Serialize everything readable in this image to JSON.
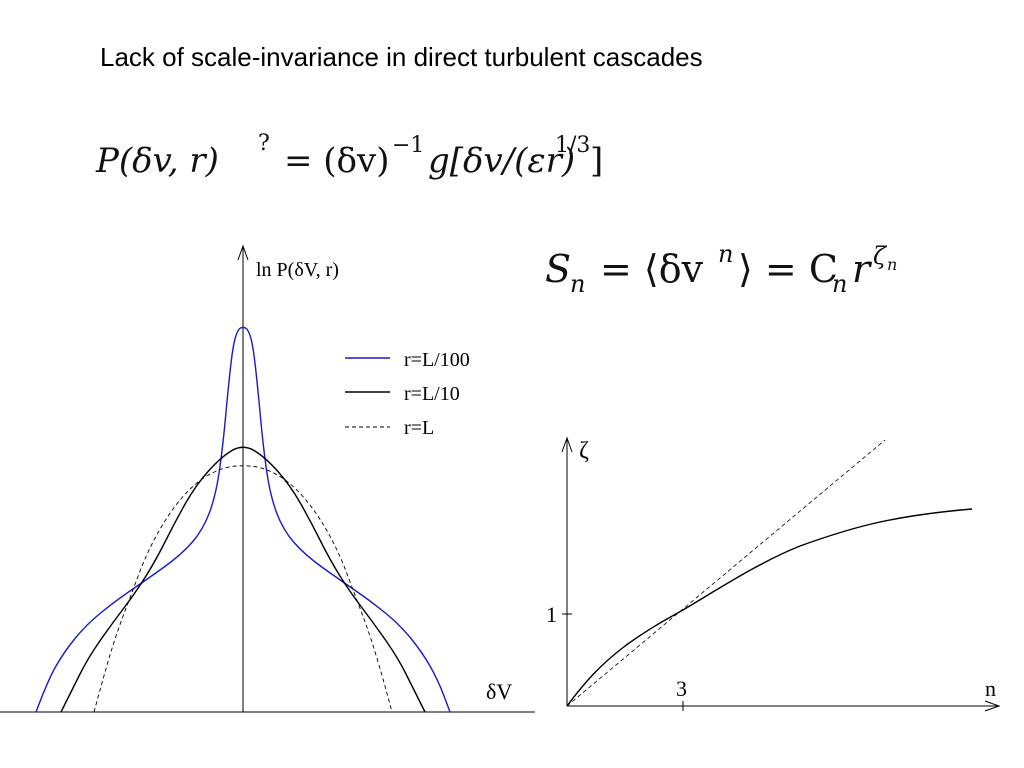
{
  "title": "Lack of scale-invariance in direct turbulent cascades",
  "formula_1": [
    "P(δv, r)",
    "?",
    "= (δv)",
    "−1",
    "g[δv/(εr)",
    "1/3",
    "]"
  ],
  "formula_2": [
    "S",
    "n",
    "= ⟨δv",
    "n",
    "⟩ = C",
    "n",
    "r",
    "ζ",
    "n"
  ],
  "pdf_plot": {
    "y_label": "ln P(δV, r)",
    "x_label": "δV",
    "legend": [
      "r=L/100",
      "r=L/10",
      "r=L"
    ]
  },
  "exponent_plot": {
    "y_label": "ζ",
    "x_label": "n",
    "y_tick": "1",
    "x_tick": "3"
  }
}
